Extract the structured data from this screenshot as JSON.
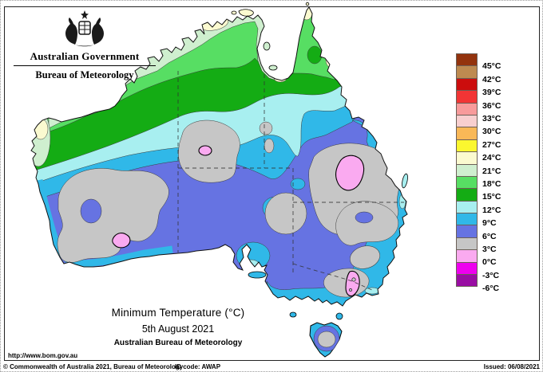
{
  "header": {
    "gov_title": "Australian Government",
    "bom_title": "Bureau of Meteorology"
  },
  "title": {
    "main": "Minimum Temperature (°C)",
    "date": "5th August 2021",
    "org": "Australian Bureau of Meteorology"
  },
  "palette": {
    "above_45": "#93330D",
    "t42_45": "#BE8A50",
    "t39_42": "#CC0D0D",
    "t36_39": "#F23535",
    "t33_36": "#F89B9B",
    "t30_33": "#F8CFCF",
    "t27_30": "#F9B857",
    "t24_27": "#FBF72F",
    "t21_24": "#FBFAD0",
    "t18_21": "#CFEFCF",
    "t15_18": "#57DE63",
    "t12_15": "#14AC14",
    "t9_12": "#A8EFF0",
    "t6_9": "#30B8E8",
    "t3_6": "#6673E2",
    "t0_3": "#C6C6C6",
    "tm3_0": "#FAAAF0",
    "tm6_m3": "#EE00EE",
    "below_m6": "#990DA3"
  },
  "legend": {
    "order": [
      "above_45",
      "t42_45",
      "t39_42",
      "t36_39",
      "t33_36",
      "t30_33",
      "t27_30",
      "t24_27",
      "t21_24",
      "t18_21",
      "t15_18",
      "t12_15",
      "t9_12",
      "t6_9",
      "t3_6",
      "t0_3",
      "tm3_0",
      "tm6_m3",
      "below_m6"
    ],
    "labels": [
      "45°C",
      "42°C",
      "39°C",
      "36°C",
      "33°C",
      "30°C",
      "27°C",
      "24°C",
      "21°C",
      "18°C",
      "15°C",
      "12°C",
      "9°C",
      "6°C",
      "3°C",
      "0°C",
      "-3°C",
      "-6°C"
    ]
  },
  "footer": {
    "url": "http://www.bom.gov.au",
    "copyright": "© Commonwealth of Australia 2021, Bureau of Meteorology",
    "id_code": "ID code: AWAP",
    "issued": "Issued: 06/08/2021"
  }
}
